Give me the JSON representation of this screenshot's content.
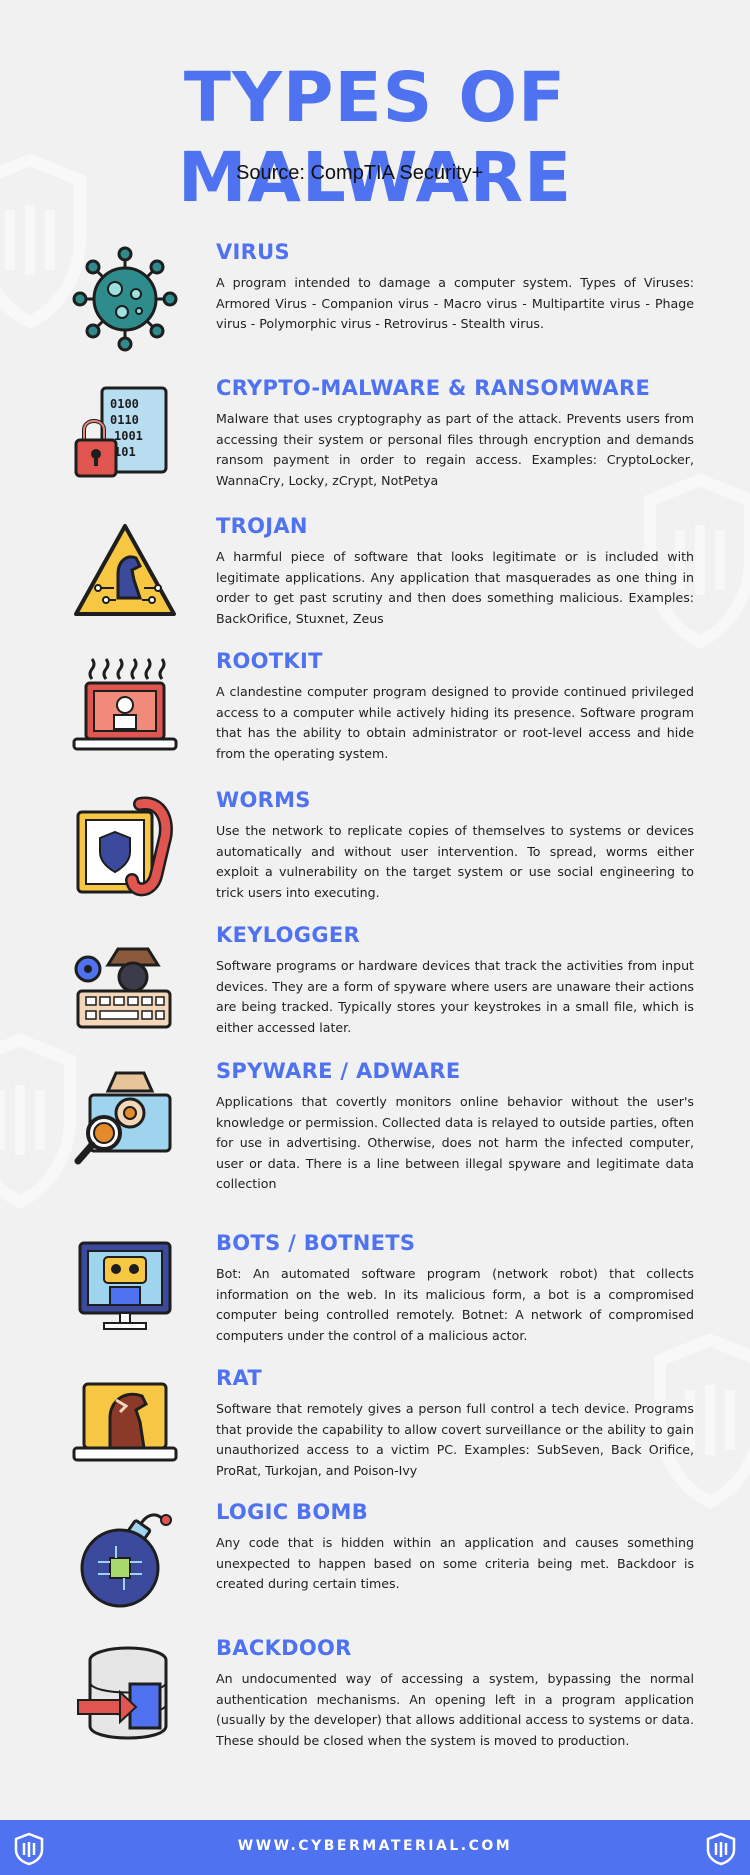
{
  "colors": {
    "accent": "#4f72f0",
    "background": "#f1f1f1",
    "dark": "#1e1e1e"
  },
  "title": "TYPES OF MALWARE",
  "source": "Source: CompTIA Security+",
  "items": [
    {
      "icon": "virus-icon",
      "title": "VIRUS",
      "text": "A program intended to damage a computer system. Types of Viruses: Armored Virus - Companion virus - Macro virus - Multipartite virus - Phage virus - Polymorphic virus - Retrovirus - Stealth virus."
    },
    {
      "icon": "encrypted-file-lock-icon",
      "title": "CRYPTO-MALWARE & RANSOMWARE",
      "text": "Malware that uses cryptography as part of the attack. Prevents users from accessing their system or personal files through encryption and demands ransom payment in order to regain access. Examples: CryptoLocker, WannaCry, Locky, zCrypt, NotPetya"
    },
    {
      "icon": "trojan-horse-icon",
      "title": "TROJAN",
      "text": "A harmful piece of software that looks legitimate or is included with legitimate applications. Any application that masquerades as one thing in order to get past scrutiny and then does something malicious. Examples: BackOrifice, Stuxnet, Zeus"
    },
    {
      "icon": "rootkit-laptop-icon",
      "title": "ROOTKIT",
      "text": "A clandestine computer program designed to provide continued privileged access to a computer while actively hiding its presence. Software program that has the ability to obtain administrator or root-level access and hide from the operating system."
    },
    {
      "icon": "worm-icon",
      "title": "WORMS",
      "text": "Use the network to replicate copies of themselves to systems or devices automatically and without user intervention. To spread, worms either exploit a vulnerability on the target system or use social engineering to trick users into executing."
    },
    {
      "icon": "keylogger-icon",
      "title": "KEYLOGGER",
      "text": "Software programs or hardware devices that track the activities from input devices. They are a form of spyware where users are unaware their actions are being tracked. Typically stores your keystrokes in a small file, which is either accessed later."
    },
    {
      "icon": "spy-magnifier-icon",
      "title": "SPYWARE / ADWARE",
      "text": "Applications that covertly monitors online behavior without the user's knowledge or permission. Collected data is relayed to outside parties, often for use in advertising. Otherwise, does not harm the infected computer, user or data. There is a line between illegal spyware and legitimate data collection"
    },
    {
      "icon": "bot-monitor-icon",
      "title": "BOTS / BOTNETS",
      "text": "Bot: An automated software program (network robot) that collects information on the web. In its malicious form, a bot is a compromised computer being controlled remotely.  Botnet: A network of compromised computers under the control of a malicious actor."
    },
    {
      "icon": "rat-horse-laptop-icon",
      "title": "RAT",
      "text": "Software that remotely gives a person full control a tech device. Programs that provide the capability to allow covert surveillance or the ability to gain unauthorized access to a victim PC. Examples: SubSeven, Back Orifice, ProRat, Turkojan, and Poison-Ivy"
    },
    {
      "icon": "logic-bomb-icon",
      "title": "LOGIC BOMB",
      "text": "Any code that is hidden within an application and causes something unexpected to happen based on some criteria being met. Backdoor is created during certain times."
    },
    {
      "icon": "backdoor-database-icon",
      "title": "BACKDOOR",
      "text": "An undocumented way of accessing a system, bypassing the normal authentication mechanisms. An opening left in a program application (usually by the developer) that allows additional access to systems or data. These should be closed when the system is moved to production."
    }
  ],
  "footer": {
    "url": "WWW.CYBERMATERIAL.COM"
  }
}
